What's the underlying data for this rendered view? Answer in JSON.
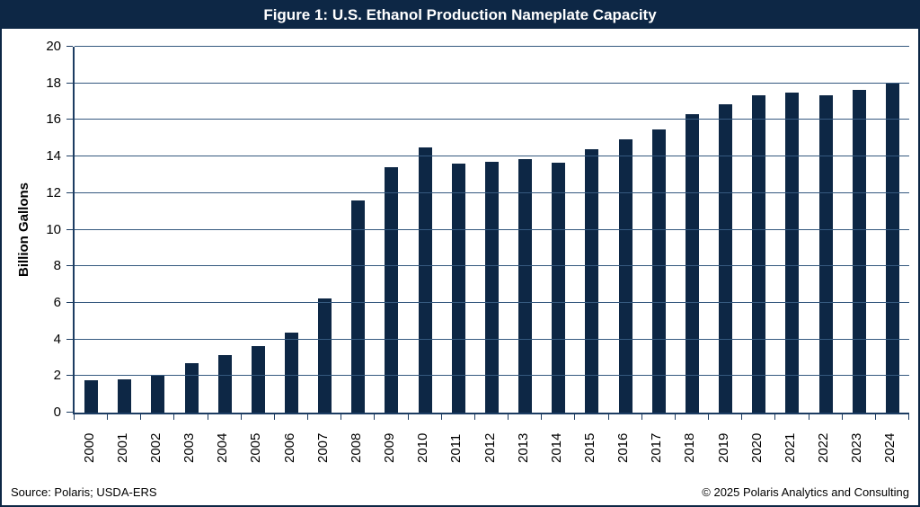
{
  "title_bar": {
    "title": "Figure 1: U.S. Ethanol Production Nameplate Capacity"
  },
  "chart_data": {
    "type": "bar",
    "title": "Figure 1: U.S. Ethanol Production Nameplate Capacity",
    "categories": [
      "2000",
      "2001",
      "2002",
      "2003",
      "2004",
      "2005",
      "2006",
      "2007",
      "2008",
      "2009",
      "2010",
      "2011",
      "2012",
      "2013",
      "2014",
      "2015",
      "2016",
      "2017",
      "2018",
      "2019",
      "2020",
      "2021",
      "2022",
      "2023",
      "2024"
    ],
    "values": [
      1.75,
      1.8,
      2.0,
      2.7,
      3.15,
      3.65,
      4.35,
      6.25,
      11.6,
      13.4,
      14.5,
      13.6,
      13.7,
      13.85,
      13.65,
      14.4,
      14.95,
      15.5,
      16.3,
      16.85,
      17.35,
      17.5,
      17.35,
      17.65,
      18.05
    ],
    "xlabel": "",
    "ylabel": "Billion Gallons",
    "ylim": [
      0,
      20
    ],
    "ytick_step": 2,
    "grid": true,
    "legend": "none",
    "bar_color": "#0d2745",
    "gridline_color": "#35597f",
    "axis_color": "#1c3c62",
    "title_bg_color": "#0d2745",
    "title_text_color": "#ffffff"
  },
  "footer": {
    "source": "Source: Polaris; USDA-ERS",
    "copyright": "© 2025 Polaris Analytics and Consulting"
  }
}
